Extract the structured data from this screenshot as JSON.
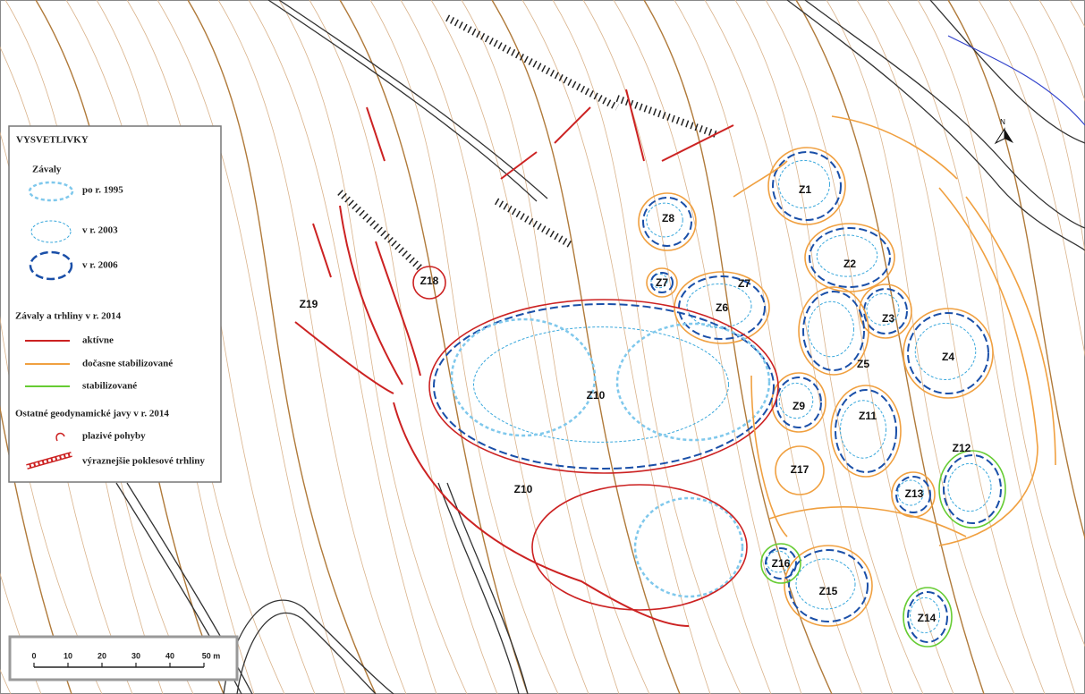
{
  "legend": {
    "title": "VYSVETLIVKY",
    "sections": [
      {
        "heading": "Závaly",
        "items": [
          "po r. 1995",
          "v r. 2003",
          "v r. 2006"
        ]
      },
      {
        "heading": "Závaly a trhliny v r. 2014",
        "items": [
          "aktívne",
          "dočasne stabilizované",
          "stabilizované"
        ]
      },
      {
        "heading": "Ostatné geodynamické javy v r. 2014",
        "items": [
          "plazivé pohyby",
          "výraznejšie poklesové trhliny"
        ]
      }
    ]
  },
  "zones": [
    "Z1",
    "Z2",
    "Z3",
    "Z4",
    "Z5",
    "Z6",
    "Z7",
    "Z7",
    "Z8",
    "Z9",
    "Z10",
    "Z10",
    "Z11",
    "Z12",
    "Z13",
    "Z14",
    "Z15",
    "Z16",
    "Z17",
    "Z18",
    "Z19"
  ],
  "scale": {
    "labels": [
      "0",
      "10",
      "20",
      "30",
      "40",
      "50 m"
    ]
  },
  "north": "N"
}
